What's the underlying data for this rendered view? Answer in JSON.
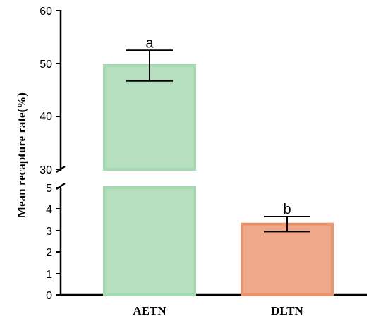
{
  "chart_data": {
    "type": "bar",
    "title": "",
    "xlabel": "",
    "ylabel": "Mean recapture rate(%)",
    "categories": [
      "AETN",
      "DLTN"
    ],
    "values": [
      49.6,
      3.3
    ],
    "error": [
      2.9,
      0.35
    ],
    "significance_labels": [
      "a",
      "b"
    ],
    "colors": {
      "fill": [
        "#b6dfbf",
        "#efa88a"
      ],
      "stroke": [
        "#a5d9b0",
        "#e8956f"
      ]
    },
    "axis_break": {
      "lower": [
        0,
        5
      ],
      "upper": [
        30,
        60
      ]
    },
    "yticks_lower": [
      "0",
      "1",
      "2",
      "3",
      "4",
      "5"
    ],
    "yticks_upper": [
      "30",
      "40",
      "50",
      "60"
    ],
    "grid": false,
    "legend": "none"
  }
}
